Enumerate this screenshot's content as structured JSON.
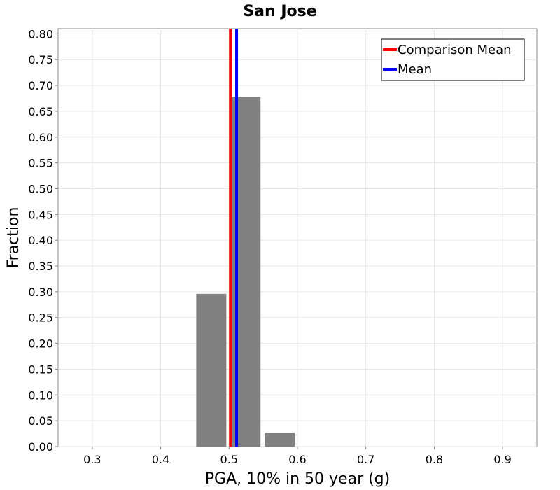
{
  "chart_data": {
    "type": "bar",
    "title": "San Jose",
    "xlabel": "PGA, 10% in 50 year (g)",
    "ylabel": "Fraction",
    "xlim": [
      0.25,
      0.95
    ],
    "ylim": [
      0.0,
      0.81
    ],
    "xticks": [
      "0.3",
      "0.4",
      "0.5",
      "0.6",
      "0.7",
      "0.8",
      "0.9"
    ],
    "yticks": [
      "0.00",
      "0.05",
      "0.10",
      "0.15",
      "0.20",
      "0.25",
      "0.30",
      "0.35",
      "0.40",
      "0.45",
      "0.50",
      "0.55",
      "0.60",
      "0.65",
      "0.70",
      "0.75",
      "0.80"
    ],
    "grid": true,
    "bar_color": "#808080",
    "bins": [
      {
        "x0": 0.452,
        "x1": 0.496,
        "value": 0.296
      },
      {
        "x0": 0.502,
        "x1": 0.546,
        "value": 0.677
      },
      {
        "x0": 0.552,
        "x1": 0.596,
        "value": 0.027
      }
    ],
    "vlines": [
      {
        "name": "Comparison Mean",
        "x": 0.502,
        "color": "#ff0000"
      },
      {
        "name": "Mean",
        "x": 0.511,
        "color": "#0000ff"
      }
    ],
    "legend": {
      "position": "top-right",
      "entries": [
        "Comparison Mean",
        "Mean"
      ]
    }
  }
}
